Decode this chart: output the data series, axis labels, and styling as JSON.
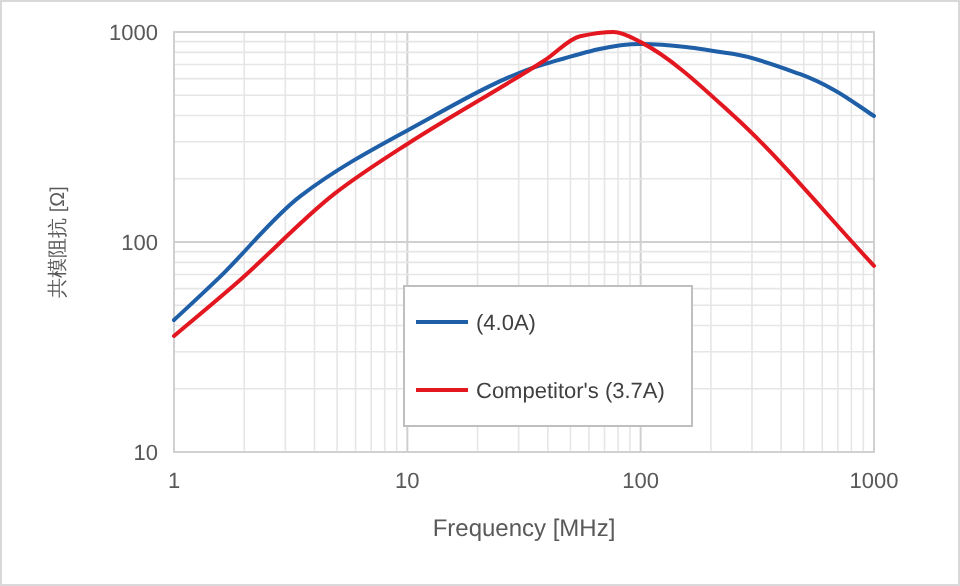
{
  "chart_data": {
    "type": "line",
    "xlabel": "Frequency [MHz]",
    "ylabel": "共模阻抗 [Ω]",
    "log": "xy",
    "grid": true,
    "legend": "bottom",
    "line_style": "solid",
    "xlim": [
      1,
      1000
    ],
    "ylim": [
      10,
      1000
    ],
    "xticks": [
      1,
      10,
      100,
      1000
    ],
    "yticks": [
      10,
      100,
      1000
    ],
    "series": [
      {
        "name": "(4.0A)",
        "color": "#1f5fa8",
        "x": [
          1,
          1.57,
          3.47,
          10,
          39,
          100,
          251,
          480,
          674,
          1000
        ],
        "values": [
          42.5,
          68,
          165,
          340,
          705,
          877,
          785,
          631,
          530,
          398
        ]
      },
      {
        "name": "Competitor's  (3.7A)",
        "color": "#e3171f",
        "x": [
          1,
          1.92,
          4.85,
          10,
          39,
          55,
          76.6,
          100,
          251,
          1000
        ],
        "values": [
          35.7,
          66,
          169,
          293,
          736,
          955,
          1000,
          895,
          398,
          77
        ]
      }
    ]
  }
}
